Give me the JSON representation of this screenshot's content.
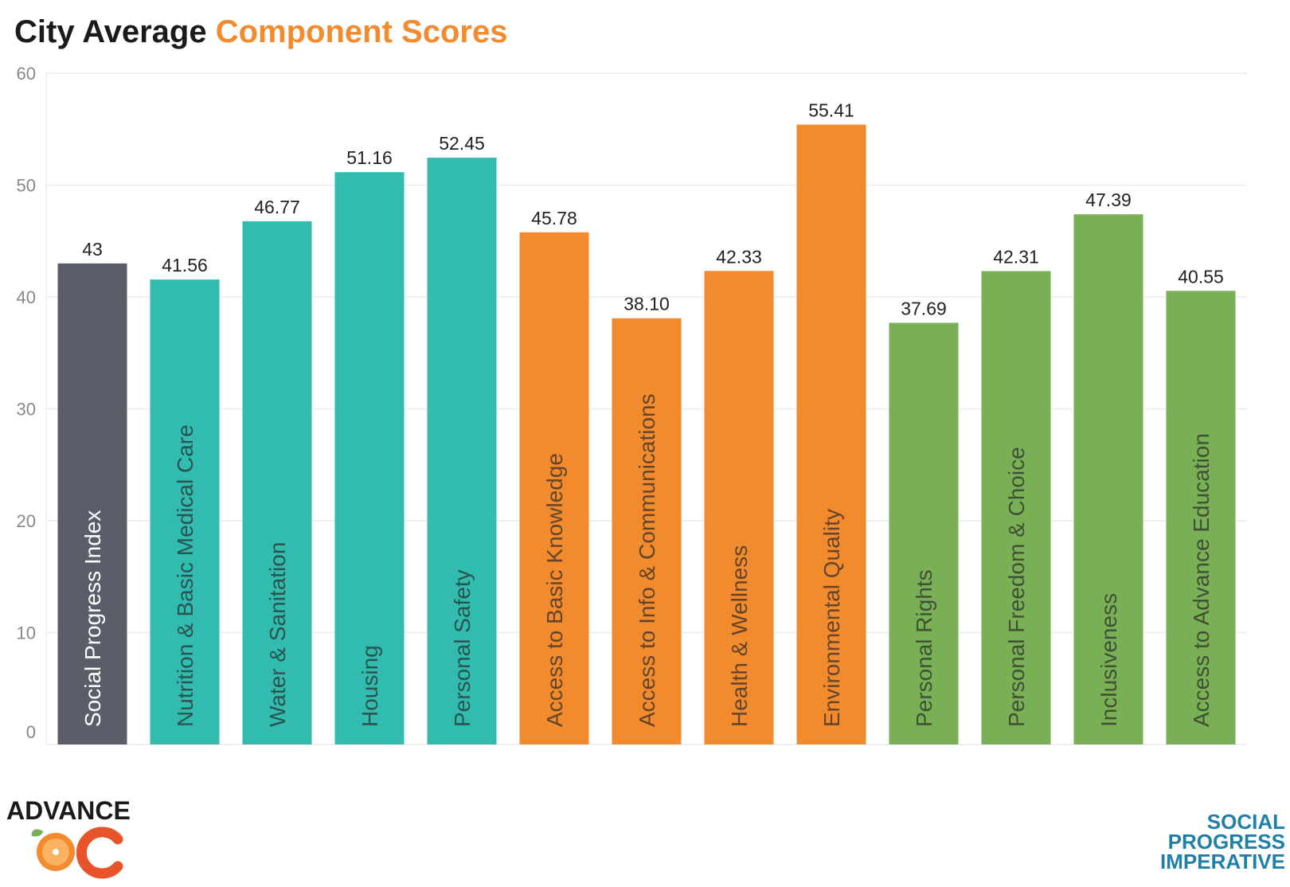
{
  "title": {
    "main": "City Average",
    "accent": "Component Scores"
  },
  "colors": {
    "index": "#5b5e68",
    "basic": "#31bcaf",
    "foundations": "#f28a2e",
    "opportunity": "#79b056",
    "accent": "#f28a2e"
  },
  "chart_data": {
    "type": "bar",
    "title": "City Average Component Scores",
    "xlabel": "",
    "ylabel": "",
    "ylim": [
      0,
      60
    ],
    "yticks": [
      0,
      10,
      20,
      30,
      40,
      50,
      60
    ],
    "grid": true,
    "legend": "none",
    "categories": [
      "Social Progress Index",
      "Nutrition & Basic Medical Care",
      "Water & Sanitation",
      "Housing",
      "Personal Safety",
      "Access to Basic Knowledge",
      "Access to Info & Communications",
      "Health & Wellness",
      "Environmental Quality",
      "Personal Rights",
      "Personal Freedom & Choice",
      "Inclusiveness",
      "Access to Advance Education"
    ],
    "values": [
      43,
      41.56,
      46.77,
      51.16,
      52.45,
      45.78,
      38.1,
      42.33,
      55.41,
      37.69,
      42.31,
      47.39,
      40.55
    ],
    "value_labels": [
      "43",
      "41.56",
      "46.77",
      "51.16",
      "52.45",
      "45.78",
      "38.10",
      "42.33",
      "55.41",
      "37.69",
      "42.31",
      "47.39",
      "40.55"
    ],
    "bar_colors": [
      "#5b5e68",
      "#31bcaf",
      "#31bcaf",
      "#31bcaf",
      "#31bcaf",
      "#f28a2e",
      "#f28a2e",
      "#f28a2e",
      "#f28a2e",
      "#79b056",
      "#79b056",
      "#79b056",
      "#79b056"
    ]
  },
  "logos": {
    "left": {
      "word": "ADVANCE",
      "mark": "OC"
    },
    "right": {
      "line1": "SOCIAL",
      "line2": "PROGRESS",
      "line3": "IMPERATIVE"
    }
  }
}
